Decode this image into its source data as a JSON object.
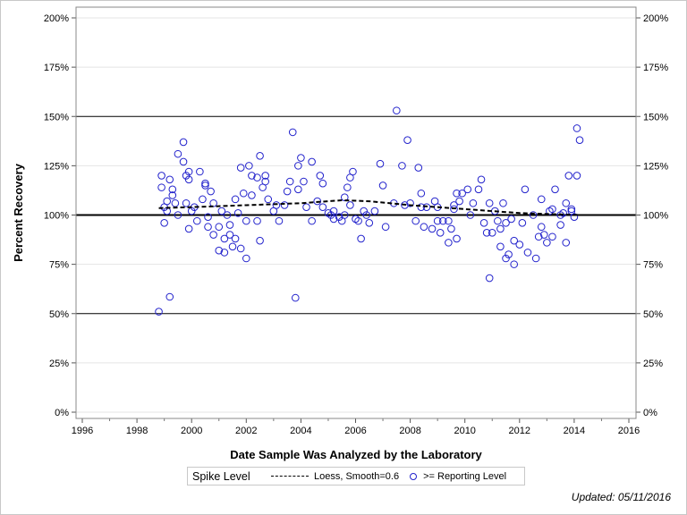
{
  "chart_data": {
    "type": "scatter",
    "xlabel": "Date Sample Was Analyzed by the Laboratory",
    "ylabel": "Percent Recovery",
    "xlim": [
      1995.6,
      2016.3
    ],
    "ylim": [
      -3,
      205
    ],
    "x_ticks": [
      "1996",
      "1998",
      "2000",
      "2002",
      "2004",
      "2006",
      "2008",
      "2010",
      "2012",
      "2014",
      "2016"
    ],
    "y_ticks": [
      "0%",
      "25%",
      "50%",
      "75%",
      "100%",
      "125%",
      "150%",
      "175%",
      "200%"
    ],
    "reference_lines": [
      50,
      100,
      150
    ],
    "spike_level": 100,
    "grid": true,
    "legend": {
      "title": "Spike Level",
      "loess_label": "Loess, Smooth=0.6",
      "points_label": ">= Reporting Level",
      "placement": "bottom"
    },
    "colors": {
      "points": "#2222cc",
      "loess": "#000000",
      "reference": "#000000",
      "grid": "#e4e4e4"
    },
    "points": [
      [
        1998.8,
        51
      ],
      [
        1998.9,
        120
      ],
      [
        1998.9,
        114
      ],
      [
        1999.0,
        96
      ],
      [
        1999.0,
        104
      ],
      [
        1999.1,
        107
      ],
      [
        1999.1,
        102
      ],
      [
        1999.2,
        118
      ],
      [
        1999.2,
        58.5
      ],
      [
        1999.3,
        113
      ],
      [
        1999.3,
        110
      ],
      [
        1999.4,
        106
      ],
      [
        1999.5,
        100
      ],
      [
        1999.5,
        131
      ],
      [
        1999.7,
        137
      ],
      [
        1999.7,
        127
      ],
      [
        1999.8,
        120
      ],
      [
        1999.8,
        106
      ],
      [
        1999.9,
        118
      ],
      [
        1999.9,
        93
      ],
      [
        1999.9,
        122
      ],
      [
        2000.0,
        102
      ],
      [
        2000.1,
        104
      ],
      [
        2000.2,
        97
      ],
      [
        2000.3,
        122
      ],
      [
        2000.4,
        108
      ],
      [
        2000.5,
        115
      ],
      [
        2000.5,
        116
      ],
      [
        2000.6,
        99
      ],
      [
        2000.6,
        94
      ],
      [
        2000.7,
        112
      ],
      [
        2000.8,
        90
      ],
      [
        2000.8,
        106
      ],
      [
        2001.0,
        94
      ],
      [
        2001.0,
        82
      ],
      [
        2001.1,
        102
      ],
      [
        2001.2,
        88
      ],
      [
        2001.2,
        81
      ],
      [
        2001.3,
        100
      ],
      [
        2001.4,
        90
      ],
      [
        2001.4,
        95
      ],
      [
        2001.5,
        84
      ],
      [
        2001.6,
        108
      ],
      [
        2001.6,
        88
      ],
      [
        2001.7,
        101
      ],
      [
        2001.8,
        83
      ],
      [
        2001.8,
        124
      ],
      [
        2001.9,
        111
      ],
      [
        2002.0,
        97
      ],
      [
        2002.0,
        78
      ],
      [
        2002.1,
        125
      ],
      [
        2002.2,
        120
      ],
      [
        2002.2,
        110
      ],
      [
        2002.4,
        97
      ],
      [
        2002.4,
        119
      ],
      [
        2002.5,
        130
      ],
      [
        2002.5,
        87
      ],
      [
        2002.6,
        114
      ],
      [
        2002.7,
        120
      ],
      [
        2002.7,
        117
      ],
      [
        2002.8,
        108
      ],
      [
        2003.0,
        102
      ],
      [
        2003.1,
        105
      ],
      [
        2003.2,
        97
      ],
      [
        2003.4,
        105
      ],
      [
        2003.5,
        112
      ],
      [
        2003.6,
        117
      ],
      [
        2003.7,
        142
      ],
      [
        2003.8,
        58
      ],
      [
        2003.9,
        125
      ],
      [
        2003.9,
        113
      ],
      [
        2004.0,
        129
      ],
      [
        2004.1,
        117
      ],
      [
        2004.2,
        104
      ],
      [
        2004.4,
        97
      ],
      [
        2004.4,
        127
      ],
      [
        2004.6,
        107
      ],
      [
        2004.7,
        120
      ],
      [
        2004.8,
        116
      ],
      [
        2004.8,
        104
      ],
      [
        2005.0,
        101
      ],
      [
        2005.1,
        100
      ],
      [
        2005.2,
        98
      ],
      [
        2005.2,
        102
      ],
      [
        2005.4,
        99
      ],
      [
        2005.5,
        97
      ],
      [
        2005.6,
        100
      ],
      [
        2005.6,
        109
      ],
      [
        2005.7,
        114
      ],
      [
        2005.8,
        105
      ],
      [
        2005.8,
        119
      ],
      [
        2005.9,
        122
      ],
      [
        2006.0,
        98
      ],
      [
        2006.1,
        97
      ],
      [
        2006.2,
        88
      ],
      [
        2006.3,
        102
      ],
      [
        2006.4,
        100
      ],
      [
        2006.5,
        96
      ],
      [
        2006.7,
        102
      ],
      [
        2006.9,
        126
      ],
      [
        2007.0,
        115
      ],
      [
        2007.1,
        94
      ],
      [
        2007.4,
        106
      ],
      [
        2007.5,
        153
      ],
      [
        2007.7,
        125
      ],
      [
        2007.8,
        105
      ],
      [
        2007.9,
        138
      ],
      [
        2008.0,
        106
      ],
      [
        2008.2,
        97
      ],
      [
        2008.3,
        124
      ],
      [
        2008.4,
        111
      ],
      [
        2008.4,
        104
      ],
      [
        2008.5,
        94
      ],
      [
        2008.6,
        104
      ],
      [
        2008.8,
        93
      ],
      [
        2008.9,
        107
      ],
      [
        2009.0,
        97
      ],
      [
        2009.0,
        104
      ],
      [
        2009.1,
        91
      ],
      [
        2009.2,
        97
      ],
      [
        2009.4,
        86
      ],
      [
        2009.4,
        97
      ],
      [
        2009.5,
        93
      ],
      [
        2009.6,
        103
      ],
      [
        2009.6,
        105
      ],
      [
        2009.7,
        88
      ],
      [
        2009.7,
        111
      ],
      [
        2009.8,
        107
      ],
      [
        2009.9,
        111
      ],
      [
        2010.1,
        113
      ],
      [
        2010.2,
        100
      ],
      [
        2010.3,
        106
      ],
      [
        2010.5,
        113
      ],
      [
        2010.6,
        118
      ],
      [
        2010.7,
        96
      ],
      [
        2010.8,
        91
      ],
      [
        2010.9,
        68
      ],
      [
        2010.9,
        106
      ],
      [
        2011.0,
        91
      ],
      [
        2011.1,
        102
      ],
      [
        2011.2,
        97
      ],
      [
        2011.3,
        93
      ],
      [
        2011.3,
        84
      ],
      [
        2011.4,
        106
      ],
      [
        2011.5,
        96
      ],
      [
        2011.5,
        78
      ],
      [
        2011.6,
        80
      ],
      [
        2011.7,
        98
      ],
      [
        2011.8,
        75
      ],
      [
        2011.8,
        87
      ],
      [
        2012.0,
        85
      ],
      [
        2012.1,
        96
      ],
      [
        2012.2,
        113
      ],
      [
        2012.3,
        81
      ],
      [
        2012.5,
        100
      ],
      [
        2012.6,
        78
      ],
      [
        2012.7,
        89
      ],
      [
        2012.8,
        108
      ],
      [
        2012.8,
        94
      ],
      [
        2012.9,
        90
      ],
      [
        2013.0,
        86
      ],
      [
        2013.1,
        102
      ],
      [
        2013.2,
        89
      ],
      [
        2013.2,
        103
      ],
      [
        2013.3,
        113
      ],
      [
        2013.5,
        100
      ],
      [
        2013.5,
        95
      ],
      [
        2013.6,
        101
      ],
      [
        2013.7,
        86
      ],
      [
        2013.7,
        106
      ],
      [
        2013.8,
        120
      ],
      [
        2013.9,
        102
      ],
      [
        2013.9,
        103
      ],
      [
        2014.0,
        99
      ],
      [
        2014.1,
        144
      ],
      [
        2014.1,
        120
      ],
      [
        2014.2,
        138
      ]
    ],
    "loess": [
      [
        1998.8,
        103.5
      ],
      [
        2000,
        104
      ],
      [
        2002,
        105
      ],
      [
        2004,
        106
      ],
      [
        2005.5,
        107.5
      ],
      [
        2006.5,
        107
      ],
      [
        2008,
        105
      ],
      [
        2010,
        103
      ],
      [
        2012,
        101
      ],
      [
        2014.2,
        100
      ]
    ]
  },
  "footer": {
    "updated": "Updated: 05/11/2016"
  }
}
